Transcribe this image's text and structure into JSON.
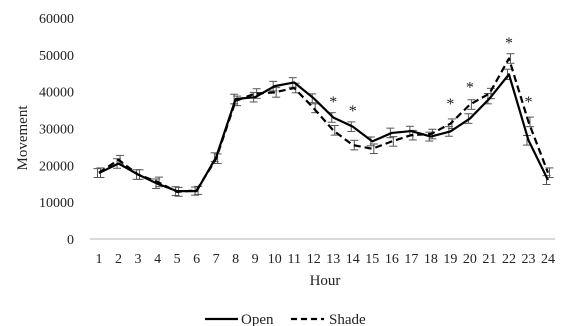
{
  "chart_data": {
    "type": "line",
    "xlabel": "Hour",
    "ylabel": "Movement",
    "ylim": [
      0,
      60000
    ],
    "yticks": [
      0,
      10000,
      20000,
      30000,
      40000,
      50000,
      60000
    ],
    "grid": false,
    "legend_position": "bottom",
    "categories": [
      "1",
      "2",
      "3",
      "4",
      "5",
      "6",
      "7",
      "8",
      "9",
      "10",
      "11",
      "12",
      "13",
      "14",
      "15",
      "16",
      "17",
      "18",
      "19",
      "20",
      "21",
      "22",
      "23",
      "24"
    ],
    "series": [
      {
        "name": "Open",
        "line_style": "solid",
        "color": "#000000",
        "values": [
          17900,
          20500,
          17500,
          15000,
          13000,
          13000,
          22200,
          38000,
          38500,
          41500,
          42500,
          38200,
          33000,
          30500,
          26500,
          28800,
          29300,
          27800,
          29200,
          32700,
          38100,
          44700,
          26800,
          16000
        ],
        "errors": [
          1200,
          1300,
          1300,
          1300,
          1200,
          1100,
          1200,
          1300,
          1300,
          1300,
          1300,
          1200,
          1300,
          1300,
          1200,
          1300,
          1300,
          1200,
          1300,
          1300,
          1400,
          1400,
          1300,
          1200
        ]
      },
      {
        "name": "Shade",
        "line_style": "dashed",
        "color": "#000000",
        "values": [
          18000,
          21500,
          17500,
          15500,
          12800,
          13200,
          21800,
          37500,
          39500,
          39800,
          41000,
          35500,
          29500,
          25500,
          24500,
          26500,
          28200,
          28500,
          31300,
          36500,
          39500,
          49000,
          31800,
          18000
        ],
        "errors": [
          1300,
          1200,
          1300,
          1300,
          1200,
          1100,
          1300,
          1300,
          1300,
          1300,
          1300,
          1200,
          1300,
          1300,
          1300,
          1300,
          1300,
          1300,
          1300,
          1300,
          1400,
          1300,
          1300,
          1300
        ]
      }
    ],
    "annotations": [
      {
        "x": "13",
        "text": "*",
        "y": 38000
      },
      {
        "x": "14",
        "text": "*",
        "y": 35500
      },
      {
        "x": "19",
        "text": "*",
        "y": 37500
      },
      {
        "x": "20",
        "text": "*",
        "y": 42000
      },
      {
        "x": "22",
        "text": "*",
        "y": 54000
      },
      {
        "x": "23",
        "text": "*",
        "y": 38000
      }
    ]
  }
}
